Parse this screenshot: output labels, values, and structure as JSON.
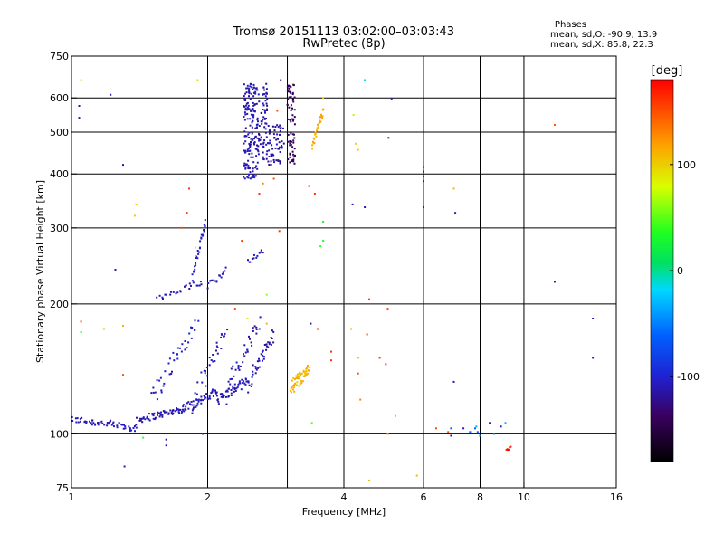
{
  "header": {
    "title": "Tromsø 20151113 03:02:00–03:03:43",
    "subtitle": "RwPretec (8p)",
    "stats_heading": "Phases",
    "stats_o": "mean, sd,O: -90.9, 13.9",
    "stats_x": "mean, sd,X: 85.8, 22.3"
  },
  "colorbar": {
    "label": "[deg]",
    "range": [
      -180,
      180
    ],
    "ticks": [
      {
        "value": 100,
        "label": "100"
      },
      {
        "value": 0,
        "label": "0"
      },
      {
        "value": -100,
        "label": "-100"
      }
    ]
  },
  "chart_data": {
    "type": "scatter",
    "xlabel": "Frequency [MHz]",
    "ylabel": "Stationary phase Virtual Height [km]",
    "xscale": "log",
    "yscale": "log",
    "xlim": [
      1,
      16
    ],
    "ylim": [
      75,
      750
    ],
    "xticks": [
      {
        "value": 1,
        "label": "1"
      },
      {
        "value": 2,
        "label": "2"
      },
      {
        "value": 4,
        "label": "4"
      },
      {
        "value": 6,
        "label": "6"
      },
      {
        "value": 8,
        "label": "8"
      },
      {
        "value": 10,
        "label": "10"
      },
      {
        "value": 16,
        "label": "16"
      }
    ],
    "xgrid": [
      2,
      3,
      4,
      6,
      8,
      10
    ],
    "yticks": [
      {
        "value": 75,
        "label": "75"
      },
      {
        "value": 100,
        "label": "100"
      },
      {
        "value": 200,
        "label": "200"
      },
      {
        "value": 300,
        "label": "300"
      },
      {
        "value": 400,
        "label": "400"
      },
      {
        "value": 500,
        "label": "500"
      },
      {
        "value": 600,
        "label": "600"
      },
      {
        "value": 750,
        "label": "750"
      }
    ],
    "ygrid": [
      100,
      200,
      300,
      400,
      500,
      600
    ],
    "grid": true,
    "color_by": "phase (deg)",
    "segments": [
      {
        "f0": 1.0,
        "f1": 1.4,
        "h0": 108,
        "h1": 103,
        "n": 60,
        "phase": -110,
        "jit": 2
      },
      {
        "f0": 1.4,
        "f1": 1.75,
        "h0": 108,
        "h1": 114,
        "n": 55,
        "phase": -112,
        "jit": 2
      },
      {
        "f0": 1.75,
        "f1": 2.1,
        "h0": 114,
        "h1": 125,
        "n": 50,
        "phase": -108,
        "jit": 3
      },
      {
        "f0": 2.1,
        "f1": 2.45,
        "h0": 120,
        "h1": 133,
        "n": 45,
        "phase": -110,
        "jit": 3
      },
      {
        "f0": 2.45,
        "f1": 2.8,
        "h0": 130,
        "h1": 170,
        "n": 40,
        "phase": -112,
        "jit": 6
      },
      {
        "f0": 1.5,
        "f1": 1.9,
        "h0": 120,
        "h1": 180,
        "n": 40,
        "phase": -105,
        "jit": 8
      },
      {
        "f0": 1.85,
        "f1": 2.2,
        "h0": 115,
        "h1": 175,
        "n": 35,
        "phase": -108,
        "jit": 8
      },
      {
        "f0": 2.2,
        "f1": 2.6,
        "h0": 125,
        "h1": 180,
        "n": 35,
        "phase": -110,
        "jit": 8
      },
      {
        "f0": 1.55,
        "f1": 1.95,
        "h0": 205,
        "h1": 225,
        "n": 25,
        "phase": -110,
        "jit": 4
      },
      {
        "f0": 1.85,
        "f1": 1.98,
        "h0": 230,
        "h1": 310,
        "n": 28,
        "phase": -105,
        "jit": 5
      },
      {
        "f0": 2.0,
        "f1": 2.2,
        "h0": 220,
        "h1": 240,
        "n": 15,
        "phase": -105,
        "jit": 4
      },
      {
        "f0": 2.45,
        "f1": 2.65,
        "h0": 250,
        "h1": 265,
        "n": 12,
        "phase": -110,
        "jit": 3
      },
      {
        "f0": 2.4,
        "f1": 2.58,
        "h0": 390,
        "h1": 650,
        "n": 160,
        "phase": -110,
        "jit": 0
      },
      {
        "f0": 2.58,
        "f1": 2.72,
        "h0": 430,
        "h1": 650,
        "n": 70,
        "phase": -112,
        "jit": 0
      },
      {
        "f0": 2.72,
        "f1": 2.95,
        "h0": 420,
        "h1": 520,
        "n": 60,
        "phase": -115,
        "jit": 0
      },
      {
        "f0": 3.0,
        "f1": 3.12,
        "h0": 420,
        "h1": 650,
        "n": 70,
        "phase": -140,
        "jit": 0
      },
      {
        "f0": 3.05,
        "f1": 3.35,
        "h0": 128,
        "h1": 140,
        "n": 55,
        "phase": 110,
        "jit": 5
      },
      {
        "f0": 3.4,
        "f1": 3.6,
        "h0": 460,
        "h1": 560,
        "n": 28,
        "phase": 115,
        "jit": 10
      },
      {
        "f0": 9.15,
        "f1": 9.35,
        "h0": 91,
        "h1": 94,
        "n": 6,
        "phase": 170,
        "jit": 1
      }
    ],
    "points": [
      {
        "f": 1.05,
        "h": 660,
        "p": 90
      },
      {
        "f": 1.22,
        "h": 610,
        "p": -110
      },
      {
        "f": 1.04,
        "h": 575,
        "p": -110
      },
      {
        "f": 1.04,
        "h": 540,
        "p": -110
      },
      {
        "f": 1.3,
        "h": 420,
        "p": -110
      },
      {
        "f": 1.39,
        "h": 340,
        "p": 100
      },
      {
        "f": 1.38,
        "h": 320,
        "p": 100
      },
      {
        "f": 1.25,
        "h": 240,
        "p": -110
      },
      {
        "f": 1.05,
        "h": 182,
        "p": 150
      },
      {
        "f": 1.05,
        "h": 172,
        "p": 30
      },
      {
        "f": 1.18,
        "h": 175,
        "p": 110
      },
      {
        "f": 1.3,
        "h": 178,
        "p": 110
      },
      {
        "f": 1.3,
        "h": 137,
        "p": 150
      },
      {
        "f": 1.44,
        "h": 98,
        "p": 40
      },
      {
        "f": 1.31,
        "h": 84,
        "p": -110
      },
      {
        "f": 1.62,
        "h": 97,
        "p": -110
      },
      {
        "f": 1.62,
        "h": 94,
        "p": -110
      },
      {
        "f": 1.95,
        "h": 100,
        "p": -110
      },
      {
        "f": 1.82,
        "h": 370,
        "p": 160
      },
      {
        "f": 1.8,
        "h": 325,
        "p": 160
      },
      {
        "f": 1.9,
        "h": 660,
        "p": 90
      },
      {
        "f": 1.88,
        "h": 270,
        "p": 90
      },
      {
        "f": 1.88,
        "h": 258,
        "p": 110
      },
      {
        "f": 1.75,
        "h": 300,
        "p": 150
      },
      {
        "f": 2.38,
        "h": 280,
        "p": 160
      },
      {
        "f": 2.6,
        "h": 360,
        "p": 160
      },
      {
        "f": 2.65,
        "h": 380,
        "p": 130
      },
      {
        "f": 2.8,
        "h": 390,
        "p": 150
      },
      {
        "f": 2.88,
        "h": 295,
        "p": 160
      },
      {
        "f": 2.7,
        "h": 210,
        "p": 60
      },
      {
        "f": 2.5,
        "h": 480,
        "p": 150
      },
      {
        "f": 2.45,
        "h": 185,
        "p": 90
      },
      {
        "f": 2.7,
        "h": 180,
        "p": 110
      },
      {
        "f": 2.3,
        "h": 195,
        "p": 150
      },
      {
        "f": 2.85,
        "h": 560,
        "p": 150
      },
      {
        "f": 2.9,
        "h": 660,
        "p": -100
      },
      {
        "f": 3.35,
        "h": 375,
        "p": 160
      },
      {
        "f": 3.45,
        "h": 360,
        "p": 160
      },
      {
        "f": 3.6,
        "h": 310,
        "p": 30
      },
      {
        "f": 3.6,
        "h": 280,
        "p": 30
      },
      {
        "f": 3.55,
        "h": 272,
        "p": 40
      },
      {
        "f": 3.6,
        "h": 600,
        "p": 100
      },
      {
        "f": 3.5,
        "h": 520,
        "p": 110
      },
      {
        "f": 3.38,
        "h": 180,
        "p": -110
      },
      {
        "f": 3.5,
        "h": 175,
        "p": 160
      },
      {
        "f": 3.75,
        "h": 155,
        "p": 160
      },
      {
        "f": 3.75,
        "h": 148,
        "p": 160
      },
      {
        "f": 3.4,
        "h": 106,
        "p": 50
      },
      {
        "f": 4.2,
        "h": 548,
        "p": 90
      },
      {
        "f": 4.25,
        "h": 470,
        "p": 100
      },
      {
        "f": 4.3,
        "h": 455,
        "p": 100
      },
      {
        "f": 4.18,
        "h": 340,
        "p": -110
      },
      {
        "f": 4.45,
        "h": 335,
        "p": -110
      },
      {
        "f": 4.45,
        "h": 660,
        "p": -10
      },
      {
        "f": 4.15,
        "h": 175,
        "p": 110
      },
      {
        "f": 4.3,
        "h": 150,
        "p": 110
      },
      {
        "f": 4.3,
        "h": 138,
        "p": 150
      },
      {
        "f": 4.35,
        "h": 120,
        "p": 130
      },
      {
        "f": 4.5,
        "h": 170,
        "p": 160
      },
      {
        "f": 4.55,
        "h": 205,
        "p": 160
      },
      {
        "f": 4.8,
        "h": 150,
        "p": 160
      },
      {
        "f": 4.95,
        "h": 145,
        "p": 160
      },
      {
        "f": 5.0,
        "h": 195,
        "p": 150
      },
      {
        "f": 5.02,
        "h": 485,
        "p": -110
      },
      {
        "f": 5.1,
        "h": 598,
        "p": -110
      },
      {
        "f": 5.2,
        "h": 110,
        "p": 110
      },
      {
        "f": 5.0,
        "h": 100,
        "p": 130
      },
      {
        "f": 4.55,
        "h": 78,
        "p": 110
      },
      {
        "f": 5.8,
        "h": 80,
        "p": 110
      },
      {
        "f": 6.0,
        "h": 405,
        "p": -110
      },
      {
        "f": 6.0,
        "h": 395,
        "p": -110
      },
      {
        "f": 6.0,
        "h": 385,
        "p": -110
      },
      {
        "f": 6.0,
        "h": 415,
        "p": -110
      },
      {
        "f": 6.0,
        "h": 335,
        "p": -110
      },
      {
        "f": 6.4,
        "h": 103,
        "p": 150
      },
      {
        "f": 6.8,
        "h": 101,
        "p": 150
      },
      {
        "f": 6.9,
        "h": 99,
        "p": -110
      },
      {
        "f": 6.9,
        "h": 103,
        "p": -60
      },
      {
        "f": 7.0,
        "h": 370,
        "p": 110
      },
      {
        "f": 7.05,
        "h": 325,
        "p": -110
      },
      {
        "f": 7.0,
        "h": 132,
        "p": -110
      },
      {
        "f": 7.35,
        "h": 103,
        "p": -110
      },
      {
        "f": 7.6,
        "h": 101,
        "p": -60
      },
      {
        "f": 7.8,
        "h": 103,
        "p": -60
      },
      {
        "f": 7.85,
        "h": 104,
        "p": -30
      },
      {
        "f": 7.9,
        "h": 101,
        "p": -60
      },
      {
        "f": 8.0,
        "h": 99,
        "p": -60
      },
      {
        "f": 8.4,
        "h": 106,
        "p": -110
      },
      {
        "f": 8.6,
        "h": 100,
        "p": -60
      },
      {
        "f": 9.1,
        "h": 106,
        "p": -30
      },
      {
        "f": 8.9,
        "h": 104,
        "p": -110
      },
      {
        "f": 11.7,
        "h": 520,
        "p": 150
      },
      {
        "f": 11.7,
        "h": 225,
        "p": -110
      },
      {
        "f": 14.2,
        "h": 185,
        "p": -110
      },
      {
        "f": 14.2,
        "h": 150,
        "p": -110
      }
    ]
  }
}
